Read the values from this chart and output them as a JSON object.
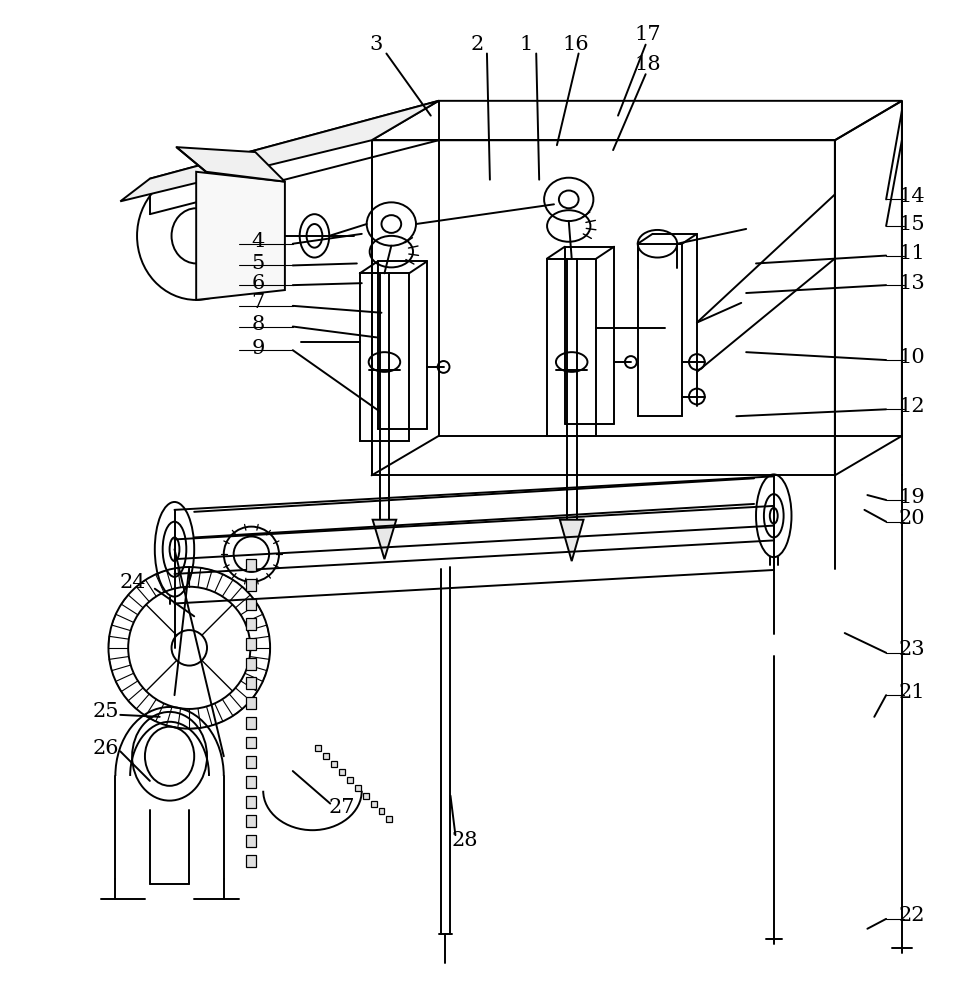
{
  "bg_color": "#ffffff",
  "line_color": "#000000",
  "lw": 1.4,
  "figsize": [
    9.66,
    10.0
  ],
  "dpi": 100,
  "label_fontsize": 15
}
